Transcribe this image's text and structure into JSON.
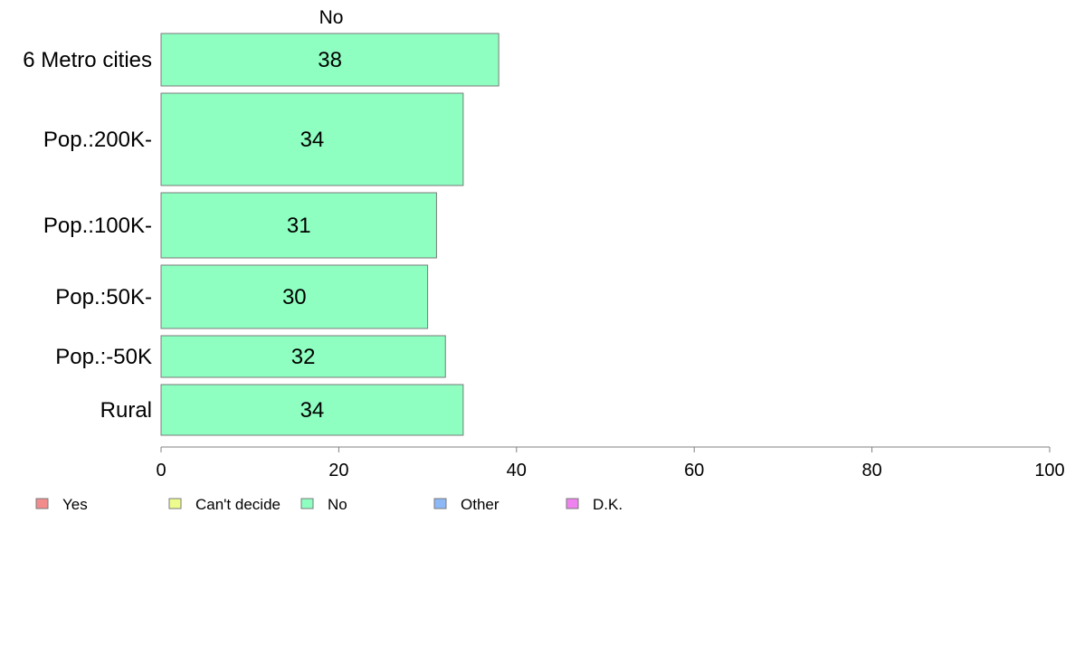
{
  "chart_data": {
    "type": "bar",
    "orientation": "horizontal",
    "column_title": "No",
    "categories": [
      "6 Metro cities",
      "Pop.:200K-",
      "Pop.:100K-",
      "Pop.:50K-",
      "Pop.:-50K",
      "Rural"
    ],
    "series": [
      {
        "name": "No",
        "values": [
          38,
          34,
          31,
          30,
          32,
          34
        ],
        "color": "#8effc1"
      }
    ],
    "data_labels": [
      "38",
      "34",
      "31",
      "30",
      "32",
      "34"
    ],
    "xlim": [
      0,
      100
    ],
    "xticks": [
      0,
      20,
      40,
      60,
      80,
      100
    ],
    "tick_labels": [
      "0",
      "20",
      "40",
      "60",
      "80",
      "100"
    ],
    "grid": false,
    "legend_position": "bottom-left",
    "legend": [
      {
        "label": "Yes",
        "color": "#f28b8b"
      },
      {
        "label": "Can't decide",
        "color": "#eefc8e"
      },
      {
        "label": "No",
        "color": "#8effc1"
      },
      {
        "label": "Other",
        "color": "#8cb8f7"
      },
      {
        "label": "D.K.",
        "color": "#ee82ee"
      }
    ]
  }
}
